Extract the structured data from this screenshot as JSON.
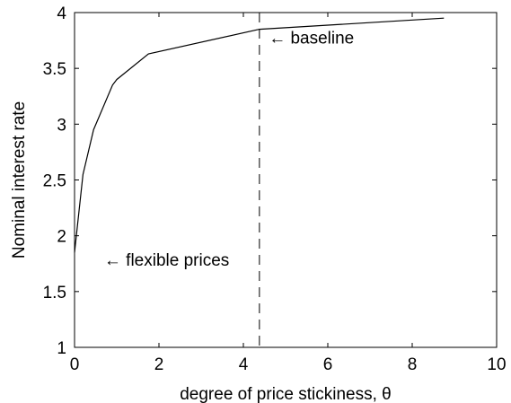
{
  "chart_data": {
    "type": "line",
    "xlabel": "degree of price stickiness, θ",
    "ylabel": "Nominal interest rate",
    "xlim": [
      0,
      10
    ],
    "ylim": [
      1,
      4
    ],
    "xticks": [
      "0",
      "2",
      "4",
      "6",
      "8",
      "10"
    ],
    "yticks": [
      "1",
      "1.5",
      "2",
      "2.5",
      "3",
      "3.5",
      "4"
    ],
    "grid": false,
    "series": [
      {
        "x": [
          0,
          0.2,
          0.45,
          0.9,
          1.0,
          1.75,
          4.38,
          8.75
        ],
        "y": [
          1.85,
          2.55,
          2.95,
          3.35,
          3.4,
          3.63,
          3.85,
          3.95
        ]
      }
    ],
    "reference_line": {
      "x": 4.38,
      "style": "dashed"
    },
    "annotations": [
      {
        "text": "← baseline",
        "x": 4.6,
        "y": 3.78
      },
      {
        "text": "← flexible prices",
        "x": 0.7,
        "y": 1.79
      }
    ]
  }
}
